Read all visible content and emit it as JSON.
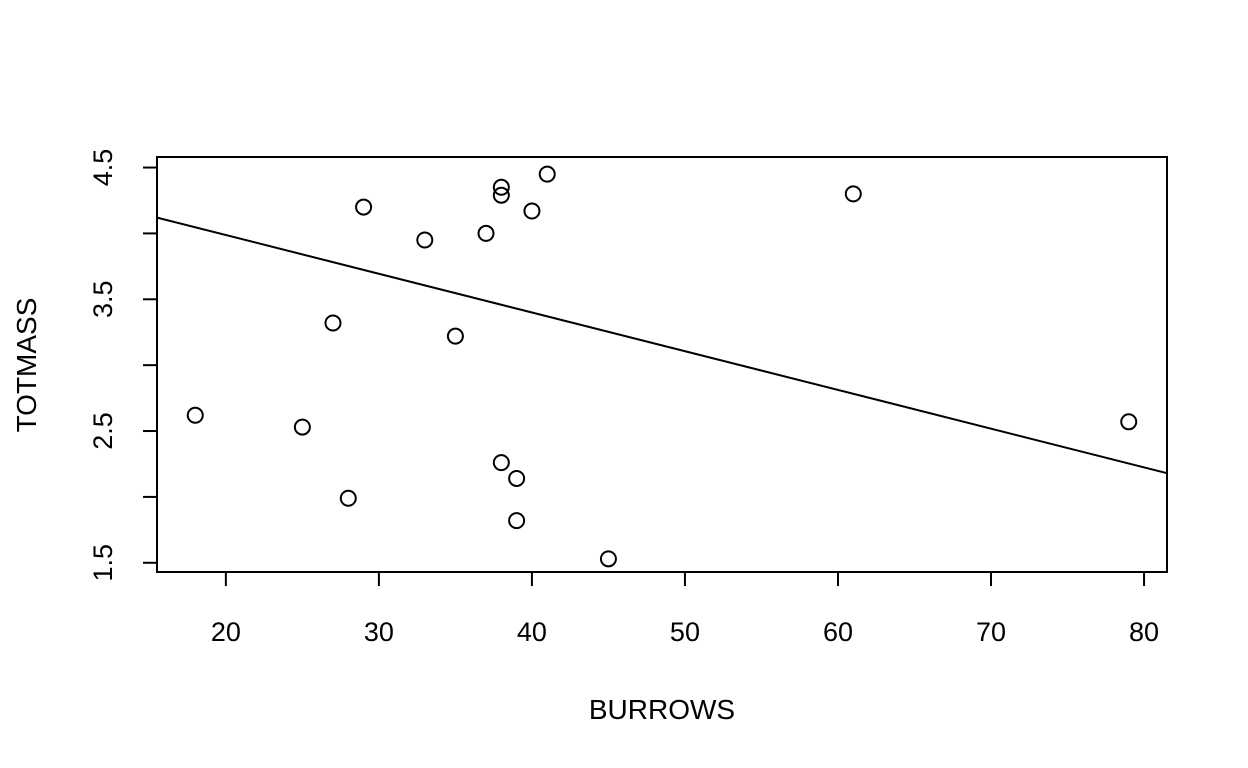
{
  "chart_data": {
    "type": "scatter",
    "title": "",
    "xlabel": "BURROWS",
    "ylabel": "TOTMASS",
    "xlim": [
      15.5,
      81.5
    ],
    "ylim": [
      1.43,
      4.58
    ],
    "xticks": [
      20,
      30,
      40,
      50,
      60,
      70,
      80
    ],
    "xtick_labels": [
      "20",
      "30",
      "40",
      "50",
      "60",
      "70",
      "80"
    ],
    "yticks": [
      1.5,
      2.0,
      2.5,
      3.0,
      3.5,
      4.0,
      4.5
    ],
    "ytick_labels": [
      "1.5",
      "",
      "2.5",
      "",
      "3.5",
      "",
      "4.5"
    ],
    "grid": false,
    "legend": "none",
    "points": [
      {
        "x": 18,
        "y": 2.62
      },
      {
        "x": 25,
        "y": 2.53
      },
      {
        "x": 27,
        "y": 3.32
      },
      {
        "x": 28,
        "y": 1.99
      },
      {
        "x": 29,
        "y": 4.2
      },
      {
        "x": 33,
        "y": 3.95
      },
      {
        "x": 35,
        "y": 3.22
      },
      {
        "x": 37,
        "y": 4.0
      },
      {
        "x": 38,
        "y": 4.35
      },
      {
        "x": 38,
        "y": 4.29
      },
      {
        "x": 38,
        "y": 2.26
      },
      {
        "x": 39,
        "y": 2.14
      },
      {
        "x": 39,
        "y": 1.82
      },
      {
        "x": 40,
        "y": 4.17
      },
      {
        "x": 41,
        "y": 4.45
      },
      {
        "x": 45,
        "y": 1.53
      },
      {
        "x": 61,
        "y": 4.3
      },
      {
        "x": 79,
        "y": 2.57
      }
    ],
    "fit_line": {
      "x": [
        15.5,
        81.5
      ],
      "y": [
        4.12,
        2.18
      ]
    },
    "colors": {
      "marker": "#000000",
      "line": "#000000",
      "background": "#ffffff"
    }
  }
}
